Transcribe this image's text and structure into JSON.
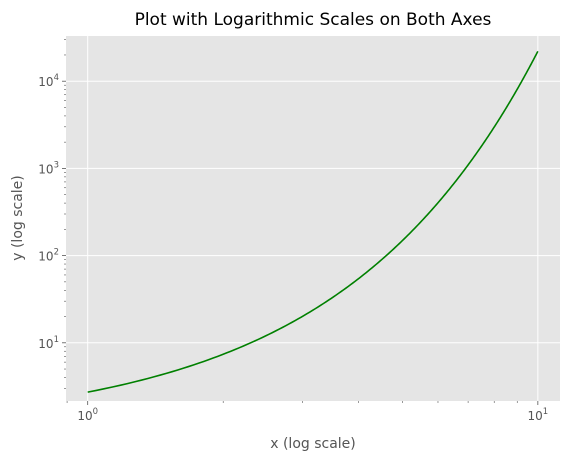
{
  "chart_data": {
    "type": "line",
    "title": "Plot with Logarithmic Scales on Both Axes",
    "xlabel": "x (log scale)",
    "ylabel": "y (log scale)",
    "xscale": "log",
    "yscale": "log",
    "xlim": [
      0.895,
      11.2
    ],
    "ylim": [
      2.15,
      33000
    ],
    "grid": true,
    "legend": "none",
    "x_ticks": [
      {
        "base": "10",
        "exp": "0",
        "value": 1
      },
      {
        "base": "10",
        "exp": "1",
        "value": 10
      }
    ],
    "y_ticks": [
      {
        "base": "10",
        "exp": "1",
        "value": 10
      },
      {
        "base": "10",
        "exp": "2",
        "value": 100
      },
      {
        "base": "10",
        "exp": "3",
        "value": 1000
      },
      {
        "base": "10",
        "exp": "4",
        "value": 10000
      }
    ],
    "series": [
      {
        "color": "#008000",
        "function": "exp",
        "x_range": [
          1,
          10
        ],
        "points": [
          {
            "x": 1,
            "y": 2.718
          },
          {
            "x": 2,
            "y": 7.389
          },
          {
            "x": 3,
            "y": 20.09
          },
          {
            "x": 4,
            "y": 54.6
          },
          {
            "x": 5,
            "y": 148.4
          },
          {
            "x": 6,
            "y": 403.4
          },
          {
            "x": 7,
            "y": 1096.6
          },
          {
            "x": 8,
            "y": 2981
          },
          {
            "x": 9,
            "y": 8103
          },
          {
            "x": 10,
            "y": 22026
          }
        ]
      }
    ],
    "colors": {
      "plot_background": "#e5e5e5",
      "grid": "#ffffff",
      "text": "#555555"
    }
  }
}
